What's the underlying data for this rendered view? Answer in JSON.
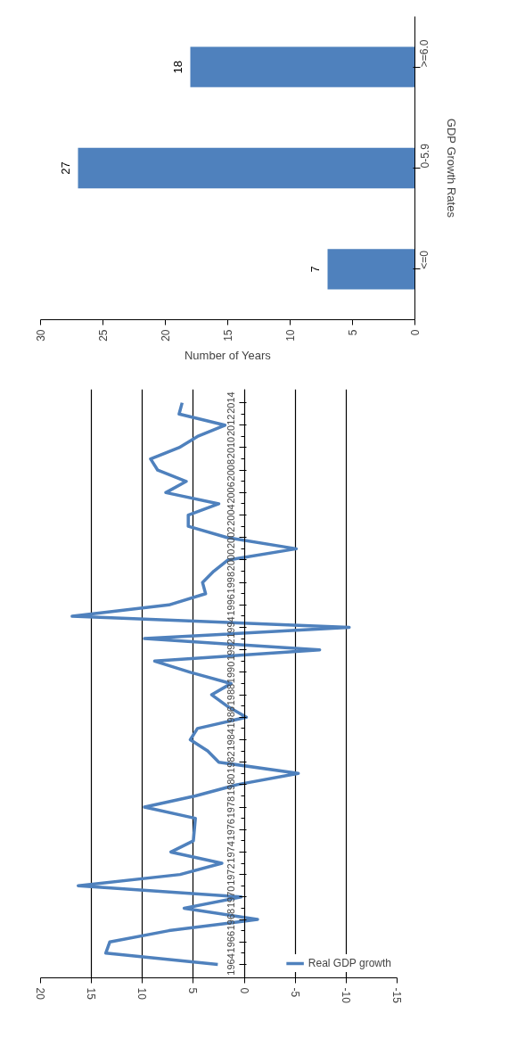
{
  "chart_data": [
    {
      "type": "bar",
      "orientation": "horizontal",
      "categories": [
        ">=6.0",
        "0-5.9",
        "<=0"
      ],
      "values": [
        18,
        27,
        7
      ],
      "color": "#4f81bd",
      "xlabel": "Number of Years",
      "ylabel": "GDP Growth Rates",
      "xlim": [
        30,
        0
      ],
      "xticks": [
        0,
        5,
        10,
        15,
        20,
        25,
        30
      ],
      "data_labels": true,
      "grid": false
    },
    {
      "type": "line",
      "orientation": "horizontal",
      "categories": [
        "2014",
        null,
        "2012",
        null,
        "2010",
        null,
        "2008",
        null,
        "2006",
        null,
        "2004",
        null,
        "2002",
        null,
        "2000",
        null,
        "1998",
        null,
        "1996",
        null,
        "1994",
        null,
        "1992",
        null,
        "1990",
        null,
        "1988",
        null,
        "1986",
        null,
        "1984",
        null,
        "1982",
        null,
        "1980",
        null,
        "1978",
        null,
        "1976",
        null,
        "1974",
        null,
        "1972",
        null,
        "1970",
        null,
        "1968",
        null,
        "1966",
        null,
        "1964"
      ],
      "series": [
        {
          "name": "Real GDP growth",
          "color": "#4f81bd",
          "values": [
            6.1,
            6.4,
            1.9,
            4.6,
            6.4,
            9.2,
            8.5,
            5.7,
            7.7,
            2.5,
            5.5,
            5.5,
            1.7,
            -5.1,
            1.6,
            3.0,
            4.1,
            3.8,
            7.4,
            16.9,
            -10.3,
            9.8,
            -7.4,
            8.8,
            5.3,
            1.3,
            3.2,
            1.7,
            -0.2,
            4.6,
            5.3,
            3.6,
            2.5,
            -5.3,
            0.7,
            4.8,
            9.8,
            4.8,
            4.9,
            5.0,
            7.2,
            2.2,
            6.3,
            16.3,
            0.3,
            5.9,
            -1.3,
            7.4,
            13.2,
            13.6,
            2.6
          ]
        }
      ],
      "xlim": [
        20,
        -15
      ],
      "xticks": [
        20,
        15,
        10,
        5,
        0,
        -5,
        -10,
        -15
      ],
      "grid": "x",
      "legend": "bottom right",
      "marker": "none",
      "line_style": "solid"
    }
  ]
}
